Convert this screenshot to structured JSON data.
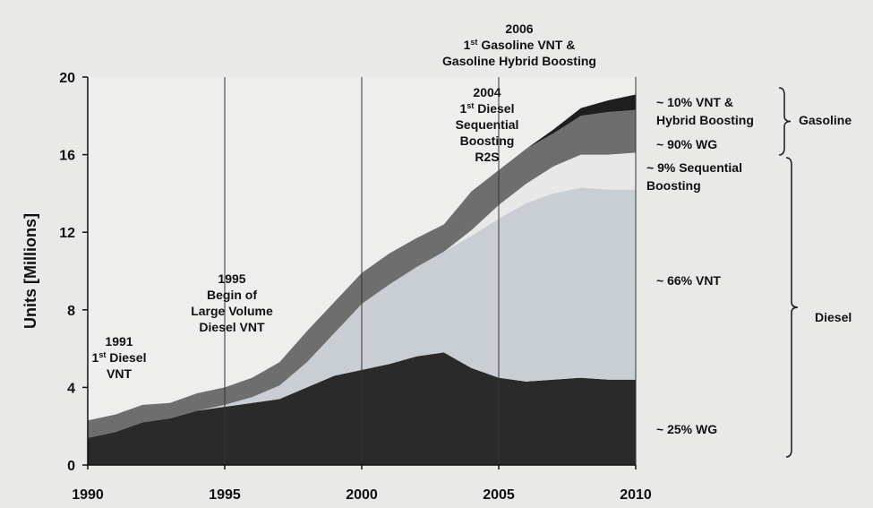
{
  "chart_data": {
    "type": "area",
    "stacked": true,
    "ylabel": "Units [Millions]",
    "xlabel": "",
    "xlim": [
      1990,
      2010
    ],
    "ylim": [
      0,
      20
    ],
    "x_ticks": [
      "1990",
      "1995",
      "2000",
      "2005",
      "2010"
    ],
    "y_ticks": [
      "0",
      "4",
      "8",
      "12",
      "16",
      "20"
    ],
    "grid": "vertical",
    "x": [
      1990,
      1991,
      1992,
      1993,
      1994,
      1995,
      1996,
      1997,
      1998,
      1999,
      2000,
      2001,
      2002,
      2003,
      2004,
      2005,
      2006,
      2007,
      2008,
      2009,
      2010
    ],
    "series": [
      {
        "color": "#2a2a2a",
        "values": [
          1.4,
          1.7,
          2.2,
          2.4,
          2.8,
          3.0,
          3.2,
          3.4,
          4.0,
          4.6,
          4.9,
          5.2,
          5.6,
          5.8,
          5.0,
          4.5,
          4.3,
          4.4,
          4.5,
          4.4,
          4.4
        ]
      },
      {
        "color": "#c8ced3",
        "values": [
          0.0,
          0.0,
          0.0,
          0.0,
          0.0,
          0.1,
          0.3,
          0.7,
          1.3,
          2.2,
          3.4,
          4.1,
          4.6,
          5.2,
          6.8,
          8.2,
          9.2,
          9.6,
          9.8,
          9.8,
          9.8
        ]
      },
      {
        "color": "#e8e8e8",
        "values": [
          0.0,
          0.0,
          0.0,
          0.0,
          0.0,
          0.0,
          0.0,
          0.0,
          0.0,
          0.0,
          0.0,
          0.0,
          0.0,
          0.0,
          0.3,
          0.7,
          1.0,
          1.4,
          1.7,
          1.8,
          1.9
        ]
      },
      {
        "color": "#6e6e6e",
        "values": [
          0.9,
          0.9,
          0.9,
          0.8,
          0.9,
          0.9,
          1.0,
          1.2,
          1.6,
          1.6,
          1.6,
          1.6,
          1.5,
          1.4,
          2.0,
          1.8,
          1.8,
          1.7,
          2.0,
          2.2,
          2.2
        ]
      },
      {
        "color": "#1e1e1e",
        "values": [
          0.0,
          0.0,
          0.0,
          0.0,
          0.0,
          0.0,
          0.0,
          0.0,
          0.0,
          0.0,
          0.0,
          0.0,
          0.0,
          0.0,
          0.0,
          0.0,
          0.0,
          0.2,
          0.4,
          0.6,
          0.8
        ]
      }
    ],
    "annotations": [
      {
        "lines": [
          "1991",
          "1st Diesel",
          "VNT"
        ],
        "x": 1991
      },
      {
        "lines": [
          "1995",
          "Begin of",
          "Large Volume",
          "Diesel VNT"
        ],
        "x": 1995
      },
      {
        "lines": [
          "2004",
          "1st Diesel",
          "Sequential",
          "Boosting",
          "R2S"
        ],
        "x": 2004
      },
      {
        "lines": [
          "2006",
          "1st Gasoline VNT  &",
          "Gasoline Hybrid Boosting"
        ],
        "x": 2006
      }
    ],
    "share_labels": [
      {
        "lines": [
          "~ 10% VNT &",
          "Hybrid Boosting"
        ]
      },
      {
        "lines": [
          "~ 90% WG"
        ]
      },
      {
        "lines": [
          "~ 9% Sequential",
          "Boosting"
        ]
      },
      {
        "lines": [
          "~ 66% VNT"
        ]
      },
      {
        "lines": [
          "~ 25% WG"
        ]
      }
    ],
    "groups": [
      {
        "label": "Gasoline"
      },
      {
        "label": "Diesel"
      }
    ]
  }
}
